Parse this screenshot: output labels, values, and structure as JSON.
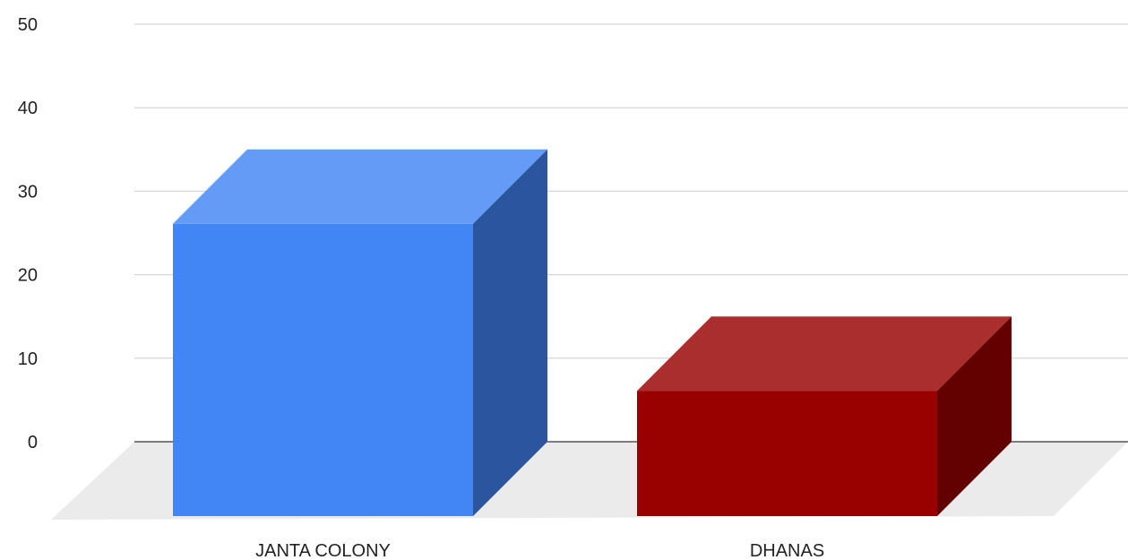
{
  "chart_data": {
    "type": "bar",
    "categories": [
      "JANTA COLONY",
      "DHANAS"
    ],
    "values": [
      35,
      15
    ],
    "ylim": [
      0,
      50
    ],
    "yticks": [
      0,
      10,
      20,
      30,
      40,
      50
    ],
    "grid": true,
    "legend": "none",
    "style": "3d",
    "colors": [
      "#4285f4",
      "#990000"
    ],
    "title": "",
    "xlabel": "",
    "ylabel": ""
  }
}
